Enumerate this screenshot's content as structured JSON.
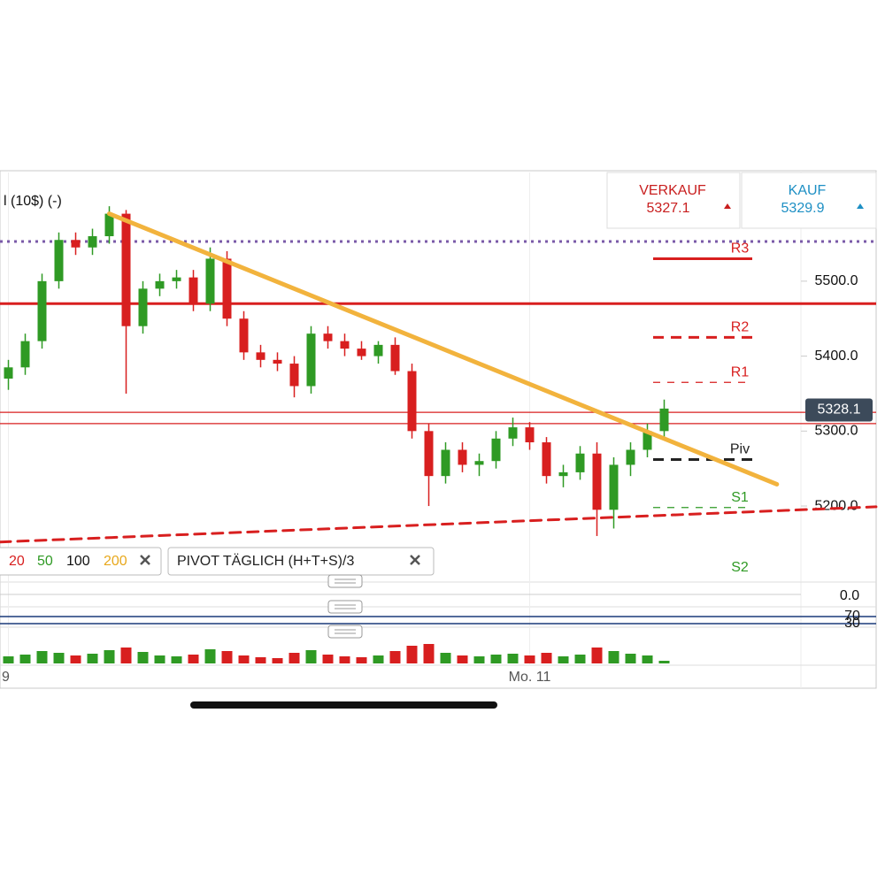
{
  "chart_data": {
    "type": "candlestick",
    "instrument_label": "l (10$) (-)",
    "categories": [
      "9",
      null,
      null,
      null,
      null,
      null,
      null,
      null,
      null,
      null,
      null,
      null,
      null,
      null,
      null,
      null,
      null,
      null,
      null,
      null,
      null,
      null,
      null,
      null,
      null,
      null,
      null,
      null,
      null,
      null,
      null,
      "Mo. 11",
      null,
      null,
      null,
      null,
      null,
      null,
      null,
      null
    ],
    "open": [
      5370,
      5385,
      5420,
      5500,
      5555,
      5545,
      5560,
      5590,
      5440,
      5490,
      5500,
      5505,
      5470,
      5530,
      5450,
      5405,
      5395,
      5390,
      5360,
      5430,
      5420,
      5410,
      5400,
      5415,
      5380,
      5300,
      5240,
      5275,
      5255,
      5260,
      5290,
      5305,
      5285,
      5240,
      5245,
      5270,
      5195,
      5255,
      5275,
      5300
    ],
    "high": [
      5395,
      5430,
      5510,
      5565,
      5565,
      5570,
      5600,
      5595,
      5500,
      5510,
      5515,
      5515,
      5545,
      5540,
      5460,
      5415,
      5405,
      5400,
      5440,
      5440,
      5430,
      5420,
      5420,
      5425,
      5390,
      5310,
      5285,
      5285,
      5270,
      5300,
      5318,
      5312,
      5292,
      5255,
      5280,
      5285,
      5265,
      5285,
      5310,
      5342
    ],
    "low": [
      5355,
      5375,
      5410,
      5490,
      5535,
      5535,
      5550,
      5350,
      5430,
      5480,
      5490,
      5460,
      5460,
      5440,
      5395,
      5385,
      5380,
      5345,
      5350,
      5410,
      5400,
      5395,
      5390,
      5375,
      5290,
      5200,
      5230,
      5245,
      5240,
      5250,
      5280,
      5275,
      5230,
      5225,
      5235,
      5160,
      5170,
      5240,
      5265,
      5290
    ],
    "close": [
      5385,
      5420,
      5500,
      5555,
      5545,
      5560,
      5590,
      5440,
      5490,
      5500,
      5505,
      5470,
      5530,
      5450,
      5405,
      5395,
      5390,
      5360,
      5430,
      5420,
      5410,
      5400,
      5415,
      5380,
      5300,
      5240,
      5275,
      5255,
      5260,
      5290,
      5305,
      5285,
      5240,
      5245,
      5270,
      5195,
      5255,
      5275,
      5300,
      5330
    ],
    "volume": [
      8,
      10,
      14,
      12,
      9,
      11,
      15,
      18,
      13,
      9,
      8,
      10,
      16,
      14,
      9,
      7,
      6,
      12,
      15,
      10,
      8,
      7,
      9,
      14,
      20,
      22,
      12,
      9,
      8,
      10,
      11,
      9,
      12,
      8,
      10,
      18,
      14,
      11,
      9,
      3
    ],
    "volume_lim": [
      0,
      30
    ],
    "up_color": "#2f9a24",
    "down_color": "#d81f1f",
    "ylim": [
      5108,
      5645
    ],
    "yticks": [
      {
        "value": 5500,
        "label": "5500.0"
      },
      {
        "value": 5400,
        "label": "5400.0"
      },
      {
        "value": 5300,
        "label": "5300.0"
      },
      {
        "value": 5200,
        "label": "5200.0"
      }
    ],
    "price_label": 5328.1,
    "lines": [
      {
        "value": 5553,
        "color": "#7a5aa8",
        "style": "dotted"
      },
      {
        "value": 5470,
        "color": "#d81f1f",
        "style": "thick"
      },
      {
        "value": 5325,
        "color": "#d81f1f",
        "style": "thin"
      },
      {
        "value": 5310,
        "color": "#d81f1f",
        "style": "thin"
      }
    ],
    "pivots": [
      {
        "name": "R3",
        "value": 5530,
        "color": "#d81f1f",
        "style": "solid"
      },
      {
        "name": "R2",
        "value": 5425,
        "color": "#d81f1f",
        "style": "dashed"
      },
      {
        "name": "R1",
        "value": 5365,
        "color": "#d81f1f",
        "style": "thin-dashed"
      },
      {
        "name": "Piv",
        "value": 5262,
        "color": "#222222",
        "style": "dashed"
      },
      {
        "name": "S1",
        "value": 5198,
        "color": "#2f9a24",
        "style": "thin-dashed"
      },
      {
        "name": "S2",
        "value": 5105,
        "color": "#2f9a24",
        "style": "none"
      }
    ],
    "trendlines": [
      {
        "x": [
          6,
          45.7
        ],
        "y": [
          5590,
          5229
        ],
        "color": "#f2b33d",
        "width": 5,
        "dash": "none"
      },
      {
        "x": [
          -0.5,
          51.6
        ],
        "y": [
          5152,
          5199
        ],
        "color": "#d81f1f",
        "width": 3,
        "dash": "12 8"
      }
    ],
    "ma_periods": [
      20,
      50,
      100,
      200
    ],
    "ma_colors": [
      "#d81f1f",
      "#2f9a24",
      "#111111",
      "#e8a81c"
    ],
    "pivot_legend": "PIVOT  TÄGLICH  (H+T+S)/3",
    "macd": {
      "yticks": [
        {
          "value": 0,
          "label": "0.0"
        }
      ]
    },
    "rsi": {
      "ylim": [
        0,
        100
      ],
      "yticks": [
        70,
        30
      ]
    }
  },
  "quote": {
    "sell_label": "VERKAUF",
    "sell_price": "5327.1",
    "buy_label": "KAUF",
    "buy_price": "5329.9"
  }
}
